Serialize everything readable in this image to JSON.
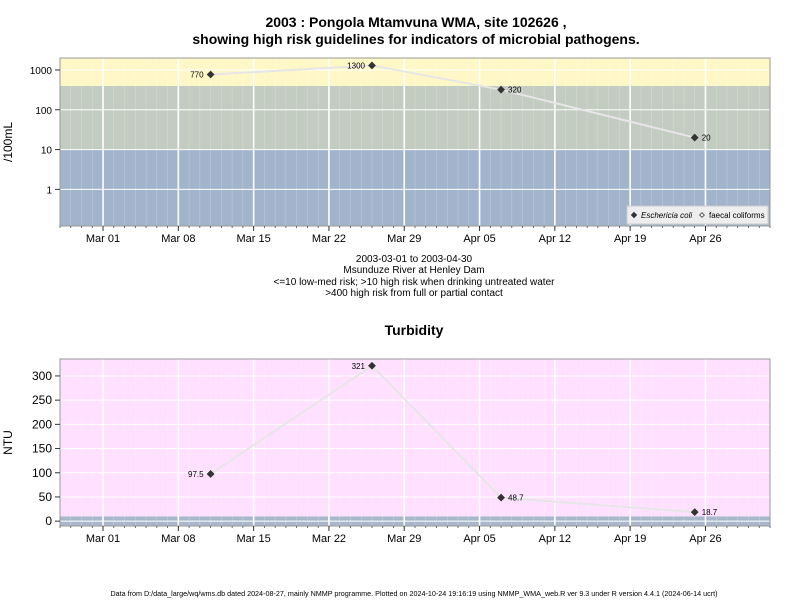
{
  "top_title_1": "2003 : Pongola Mtamvuna WMA, site 102626 ,",
  "top_title_2": "showing high risk guidelines for indicators of microbial pathogens.",
  "caption": [
    "2003-03-01 to 2003-04-30",
    "Msunduze River at Henley Dam",
    "<=10 low-med risk; >10 high risk when drinking untreated water",
    ">400 high risk from full or partial contact"
  ],
  "footer": "Data from D:/data_large/wq/wms.db dated 2024-08-27, mainly NMMP programme. Plotted on 2024-10-24 19:16:19 using NMMP_WMA_web.R ver 9.3 under R version 4.4.1 (2024-06-14 ucrt)",
  "colors": {
    "band_low": "#a2b4cc",
    "band_mid": "#c3ccc1",
    "band_high": "#fff8c6",
    "turb_bg": "#ffe0ff",
    "turb_low": "#a9b7cb",
    "grid": "#ffffff",
    "line": "#e6e6e6",
    "point": "#333333"
  },
  "chart_data": [
    {
      "type": "line",
      "title": "",
      "ylabel": "/100mL",
      "xlabel": "",
      "y_scale": "log10",
      "ylim": [
        0.12,
        2000
      ],
      "xlim": [
        "2003-02-25",
        "2003-05-02"
      ],
      "yticks": [
        1,
        10,
        100,
        1000
      ],
      "ytick_labels": [
        "1",
        "10",
        "100",
        "1000"
      ],
      "xticks": [
        "2003-03-01",
        "2003-03-08",
        "2003-03-15",
        "2003-03-22",
        "2003-03-29",
        "2003-04-05",
        "2003-04-12",
        "2003-04-19",
        "2003-04-26"
      ],
      "xtick_labels": [
        "Mar 01",
        "Mar 08",
        "Mar 15",
        "Mar 22",
        "Mar 29",
        "Apr 05",
        "Apr 12",
        "Apr 19",
        "Apr 26"
      ],
      "bands": [
        {
          "from": 0.12,
          "to": 10,
          "color": "#a2b4cc"
        },
        {
          "from": 10,
          "to": 400,
          "color": "#c3ccc1"
        },
        {
          "from": 400,
          "to": 2000,
          "color": "#fff8c6"
        }
      ],
      "grid": true,
      "legend": "bottom-right",
      "series": [
        {
          "name": "Eschericia coli",
          "marker": "filled-diamond",
          "x": [
            "2003-03-11",
            "2003-03-26",
            "2003-04-07",
            "2003-04-25"
          ],
          "y": [
            770,
            1300,
            320,
            20
          ],
          "labels": [
            "770",
            "1300",
            "320",
            "20"
          ]
        },
        {
          "name": "faecal coliforms",
          "marker": "open-diamond",
          "x": [],
          "y": []
        }
      ]
    },
    {
      "type": "line",
      "title": "Turbidity",
      "ylabel": "NTU",
      "xlabel": "",
      "y_scale": "linear",
      "ylim": [
        -10,
        335
      ],
      "xlim": [
        "2003-02-25",
        "2003-05-02"
      ],
      "yticks": [
        0,
        50,
        100,
        150,
        200,
        250,
        300
      ],
      "ytick_labels": [
        "0",
        "50",
        "100",
        "150",
        "200",
        "250",
        "300"
      ],
      "xticks": [
        "2003-03-01",
        "2003-03-08",
        "2003-03-15",
        "2003-03-22",
        "2003-03-29",
        "2003-04-05",
        "2003-04-12",
        "2003-04-19",
        "2003-04-26"
      ],
      "xtick_labels": [
        "Mar 01",
        "Mar 08",
        "Mar 15",
        "Mar 22",
        "Mar 29",
        "Apr 05",
        "Apr 12",
        "Apr 19",
        "Apr 26"
      ],
      "bands": [
        {
          "from": -10,
          "to": 10,
          "color": "#a9b7cb"
        },
        {
          "from": 10,
          "to": 335,
          "color": "#ffe0ff"
        }
      ],
      "grid": true,
      "series": [
        {
          "name": "",
          "marker": "filled-diamond",
          "x": [
            "2003-03-11",
            "2003-03-26",
            "2003-04-07",
            "2003-04-25"
          ],
          "y": [
            97.5,
            321,
            48.7,
            18.7
          ],
          "labels": [
            "97.5",
            "321",
            "48.7",
            "18.7"
          ]
        }
      ]
    }
  ]
}
